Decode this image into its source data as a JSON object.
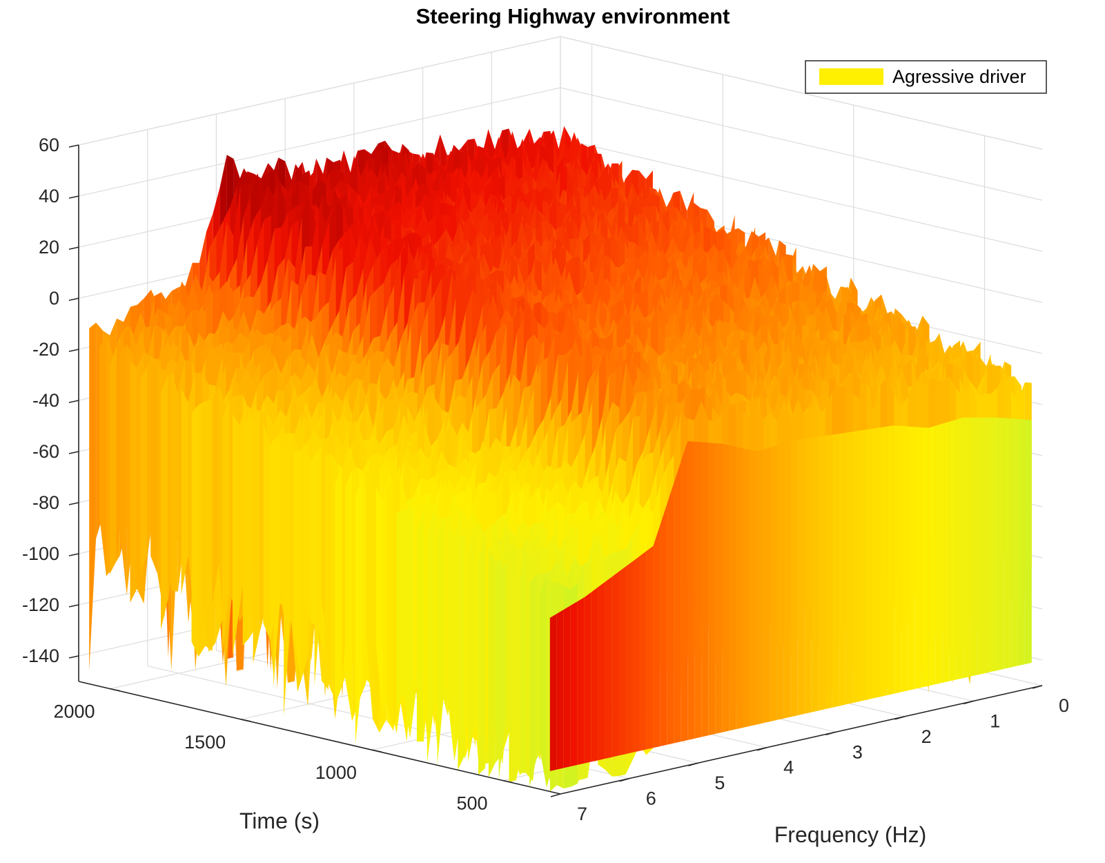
{
  "chart_data": {
    "type": "surface",
    "title": "Steering Highway environment",
    "xlabel": "Time (s)",
    "ylabel": "Frequency (Hz)",
    "zlabel": "",
    "x_ticks": [
      "500",
      "1000",
      "1500",
      "2000"
    ],
    "y_ticks": [
      "0",
      "1",
      "2",
      "3",
      "4",
      "5",
      "6",
      "7"
    ],
    "z_ticks": [
      "60",
      "40",
      "20",
      "0",
      "-20",
      "-40",
      "-60",
      "-80",
      "-100",
      "-120",
      "-140"
    ],
    "xlim": [
      280,
      2120
    ],
    "ylim": [
      0,
      7
    ],
    "zlim": [
      -150,
      60
    ],
    "grid": true,
    "legend": {
      "position": "top-right",
      "entries": [
        {
          "label": "Agressive driver",
          "color": "#ffef00"
        }
      ]
    },
    "colormap": [
      "#1f6fff",
      "#00d8d0",
      "#3cf070",
      "#9cf53a",
      "#e2f21a",
      "#fff000",
      "#ffd000",
      "#ff9c00",
      "#ff5a00",
      "#f01000",
      "#a80000"
    ],
    "peak_profile": [
      {
        "frequency_hz": 0.0,
        "power_db": 38
      },
      {
        "frequency_hz": 0.5,
        "power_db": 42
      },
      {
        "frequency_hz": 1.0,
        "power_db": 45
      },
      {
        "frequency_hz": 1.5,
        "power_db": 44
      },
      {
        "frequency_hz": 2.0,
        "power_db": 48
      },
      {
        "frequency_hz": 2.5,
        "power_db": 49
      },
      {
        "frequency_hz": 3.0,
        "power_db": 50
      },
      {
        "frequency_hz": 3.5,
        "power_db": 51
      },
      {
        "frequency_hz": 4.0,
        "power_db": 50
      },
      {
        "frequency_hz": 4.5,
        "power_db": 56
      },
      {
        "frequency_hz": 5.0,
        "power_db": 60
      },
      {
        "frequency_hz": 5.5,
        "power_db": 22
      },
      {
        "frequency_hz": 6.0,
        "power_db": 15
      },
      {
        "frequency_hz": 6.5,
        "power_db": 8
      },
      {
        "frequency_hz": 7.0,
        "power_db": 3
      }
    ]
  }
}
